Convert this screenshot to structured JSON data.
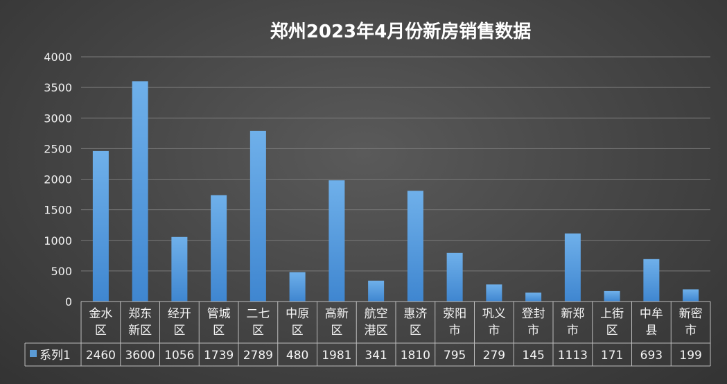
{
  "chart_data": {
    "type": "bar",
    "title": "郑州2023年4月份新房销售数据",
    "categories": [
      [
        "金水",
        "区"
      ],
      [
        "郑东",
        "新区"
      ],
      [
        "经开",
        "区"
      ],
      [
        "管城",
        "区"
      ],
      [
        "二七",
        "区"
      ],
      [
        "中原",
        "区"
      ],
      [
        "高新",
        "区"
      ],
      [
        "航空",
        "港区"
      ],
      [
        "惠济",
        "区"
      ],
      [
        "荥阳",
        "市"
      ],
      [
        "巩义",
        "市"
      ],
      [
        "登封",
        "市"
      ],
      [
        "新郑",
        "市"
      ],
      [
        "上街",
        "区"
      ],
      [
        "中牟",
        "县"
      ],
      [
        "新密",
        "市"
      ]
    ],
    "series": [
      {
        "name": "系列1",
        "values": [
          2460,
          3600,
          1056,
          1739,
          2789,
          480,
          1981,
          341,
          1810,
          795,
          279,
          145,
          1113,
          171,
          693,
          199
        ]
      }
    ],
    "ylim": [
      0,
      4000
    ],
    "yticks": [
      0,
      500,
      1000,
      1500,
      2000,
      2500,
      3000,
      3500,
      4000
    ],
    "grid": true,
    "legend": "data-table",
    "colors": {
      "bar_light": "#6fb0ea",
      "bar_dark": "#3f86d0",
      "legend_key": "#5b9bd5"
    }
  }
}
